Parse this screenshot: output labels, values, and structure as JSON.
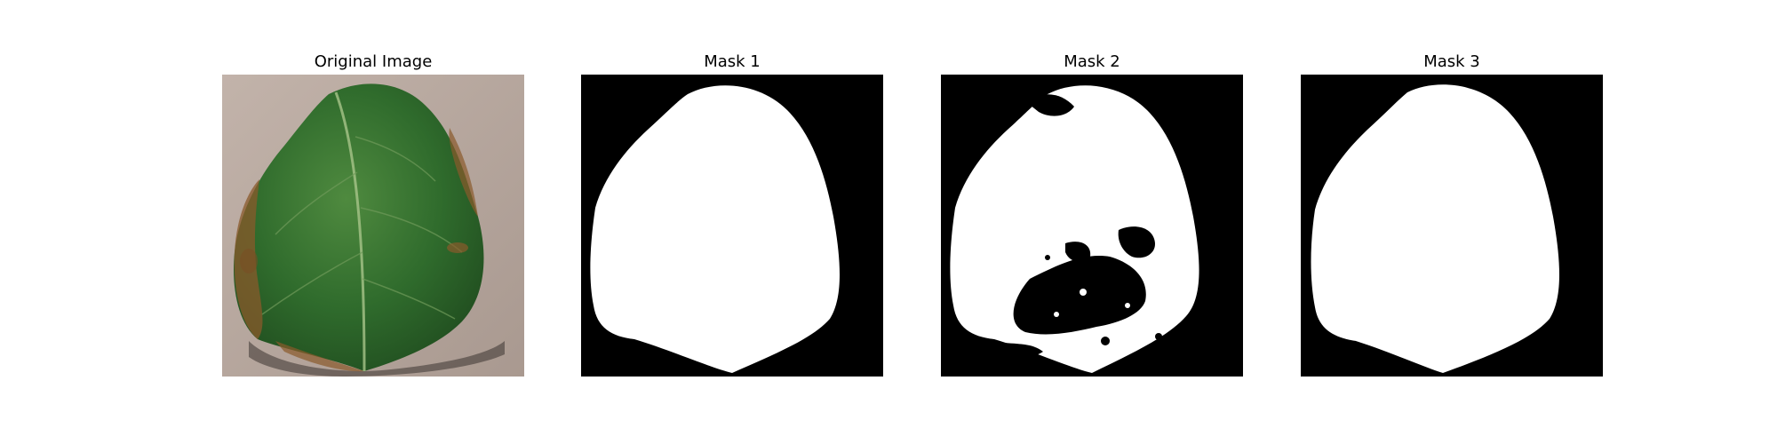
{
  "figure": {
    "panels": [
      {
        "title": "Original Image",
        "kind": "photo",
        "subject": "leaf"
      },
      {
        "title": "Mask 1",
        "kind": "binary-mask"
      },
      {
        "title": "Mask 2",
        "kind": "binary-mask"
      },
      {
        "title": "Mask 3",
        "kind": "binary-mask"
      }
    ],
    "colors": {
      "background": "#ffffff",
      "mask_foreground": "#ffffff",
      "mask_background": "#000000",
      "leaf_green": "#2f6b2c",
      "ground": "#b9a9a0",
      "lesion_brown": "#8a5a2b"
    }
  }
}
